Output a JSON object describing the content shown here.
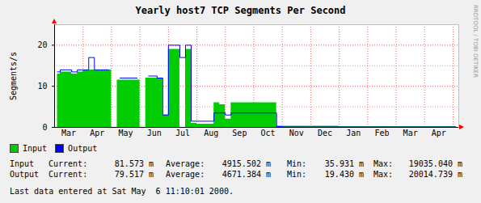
{
  "chart_data": {
    "type": "area",
    "title": "Yearly host7 TCP Segments Per Second",
    "ylabel": "Segments/s",
    "credit": "RRDTOOL / TOBI OETIKER",
    "categories": [
      null,
      null,
      "Mar",
      null,
      null,
      null,
      null,
      "Apr",
      null,
      null,
      null,
      null,
      "May",
      null,
      null,
      null,
      null,
      "Jun",
      null,
      null,
      null,
      null,
      "Jul",
      null,
      null,
      null,
      null,
      "Aug",
      null,
      null,
      null,
      null,
      "Sep",
      null,
      null,
      null,
      null,
      "Oct",
      null,
      null,
      null,
      null,
      "Nov",
      null,
      null,
      null,
      null,
      "Dec",
      null,
      null,
      null,
      null,
      "Jan",
      null,
      null,
      null,
      null,
      "Feb",
      null,
      null,
      null,
      null,
      "Mar",
      null,
      null,
      null,
      null,
      "Apr",
      null,
      null,
      null
    ],
    "series": [
      {
        "name": "Input",
        "color": "#00cc00",
        "type": "area",
        "values": [
          13,
          13.5,
          13.5,
          13,
          13.5,
          14,
          14,
          14,
          14,
          14,
          null,
          11.5,
          11.5,
          11.5,
          11.5,
          null,
          12,
          12,
          12,
          3,
          19,
          19,
          null,
          19,
          1,
          0.8,
          0.8,
          0.8,
          6,
          5.5,
          2,
          6,
          6,
          6,
          6,
          6,
          6,
          6,
          6,
          0.3,
          0.3,
          0.3,
          0.3,
          0.3,
          0.3,
          0.3,
          0.3,
          0.3,
          0.3,
          0.3,
          0.2,
          0.2,
          0.2,
          0.2,
          0.2,
          0.2,
          0.2,
          0.2,
          0.2,
          0.2,
          0.2,
          0.2,
          0.2,
          0.2,
          0.2,
          0.2,
          0.2,
          0.2,
          0.2,
          0.2,
          0.2
        ],
        "stats": [
          "81.573 m",
          "4915.502 m",
          "35.931 m",
          "19035.040 m"
        ]
      },
      {
        "name": "Output",
        "color": "#0000ff",
        "type": "line",
        "values": [
          13.5,
          14,
          14,
          13.5,
          14,
          14,
          17,
          14,
          14,
          14,
          null,
          12,
          12,
          12,
          12,
          null,
          12.5,
          12.5,
          12,
          3,
          20,
          20,
          17,
          20,
          1.5,
          1.5,
          1.5,
          1.5,
          3.5,
          3.5,
          3,
          3.5,
          3.5,
          3.5,
          3.5,
          3.5,
          3.5,
          3.5,
          3.5,
          0.2,
          0.1,
          0.1,
          0.1,
          0.1,
          0.1,
          0.1,
          0.1,
          0.1,
          0.1,
          0.1,
          0.1,
          0.1,
          0.1,
          0.1,
          0.1,
          0.1,
          0.1,
          0.1,
          0.1,
          0.1,
          0.1,
          0.1,
          0.1,
          0.1,
          0.1,
          0.1,
          0.1,
          0.1,
          0.1,
          0.1,
          0.1
        ],
        "stats": [
          "79.517 m",
          "4671.384 m",
          "19.430 m",
          "20014.739 m"
        ]
      }
    ],
    "stat_labels": [
      "Current:",
      "Average:",
      "Min:",
      "Max:"
    ],
    "last_update": "Last data entered at Sat May  6 11:10:01 2000.",
    "ylim": [
      0,
      25
    ],
    "yticks": [
      0,
      10,
      20
    ],
    "grid": true,
    "legend": "bottom"
  }
}
